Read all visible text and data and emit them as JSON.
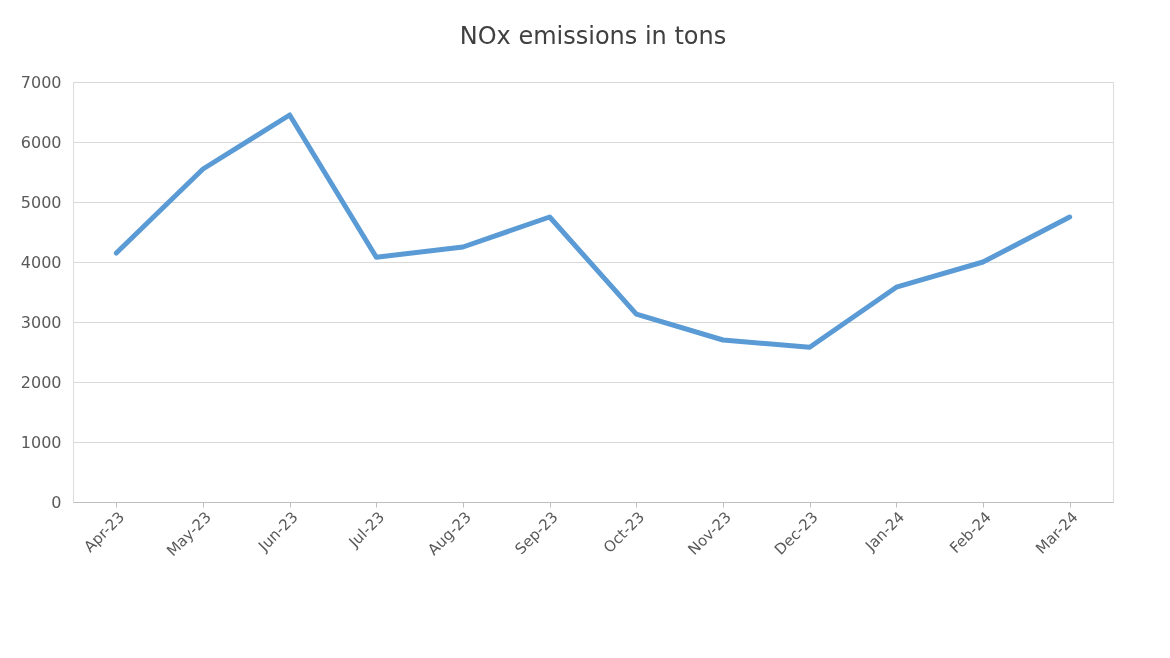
{
  "chart_data": {
    "type": "line",
    "title": "NOx emissions in tons",
    "categories": [
      "Apr-23",
      "May-23",
      "Jun-23",
      "Jul-23",
      "Aug-23",
      "Sep-23",
      "Oct-23",
      "Nov-23",
      "Dec-23",
      "Jan-24",
      "Feb-24",
      "Mar-24"
    ],
    "series": [
      {
        "color": "#5b9bd5",
        "values": [
          4150,
          5550,
          6450,
          4080,
          4250,
          4750,
          3130,
          2700,
          2580,
          3580,
          4000,
          4750
        ]
      }
    ],
    "ylim": [
      0,
      7000
    ],
    "yticks": [
      0,
      1000,
      2000,
      3000,
      4000,
      5000,
      6000,
      7000
    ],
    "grid": "y",
    "marker": "none",
    "line_style": "solid"
  }
}
